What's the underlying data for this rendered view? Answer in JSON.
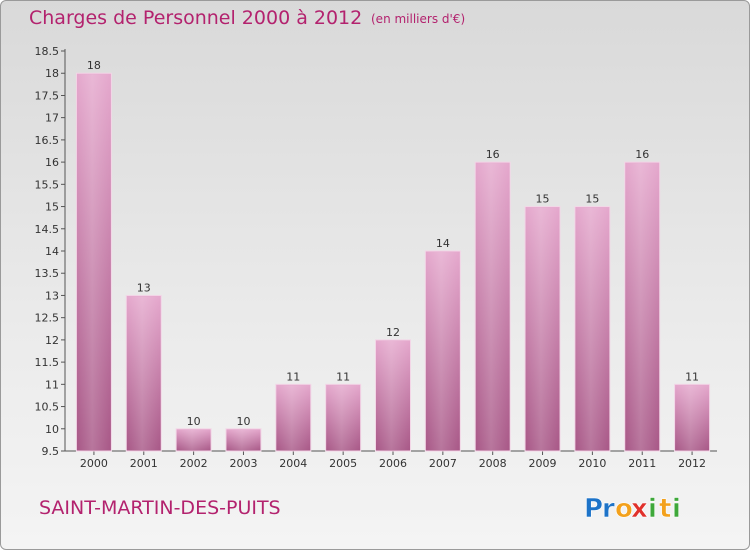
{
  "header": {
    "title": "Charges de Personnel 2000 à 2012",
    "unit": "(en milliers d'€)"
  },
  "footer": {
    "commune": "SAINT-MARTIN-DES-PUITS",
    "logo": {
      "text": "Proxiti",
      "letters": [
        "P",
        "r",
        "o",
        "x",
        "i",
        "t",
        "i"
      ],
      "letter_colors": [
        "#1d73c8",
        "#1d73c8",
        "#f3a11c",
        "#e0312b",
        "#3ea83a",
        "#f3a11c",
        "#3ea83a"
      ]
    }
  },
  "colors": {
    "title": "#b3226e",
    "bar_top": "#e5a8cd",
    "bar_bottom": "#a85887",
    "background_top": "#d9d9d9",
    "background_bottom": "#f4f4f4"
  },
  "chart_data": {
    "type": "bar",
    "title": "Charges de Personnel 2000 à 2012",
    "subtitle": "(en milliers d'€)",
    "categories": [
      "2000",
      "2001",
      "2002",
      "2003",
      "2004",
      "2005",
      "2006",
      "2007",
      "2008",
      "2009",
      "2010",
      "2011",
      "2012"
    ],
    "values": [
      18,
      13,
      10,
      10,
      11,
      11,
      12,
      14,
      16,
      15,
      15,
      16,
      11
    ],
    "ylim": [
      9.5,
      18.5
    ],
    "yticks": [
      "9.5",
      "10",
      "10.5",
      "11",
      "11.5",
      "12",
      "12.5",
      "13",
      "13.5",
      "14",
      "14.5",
      "15",
      "15.5",
      "16",
      "16.5",
      "17",
      "17.5",
      "18",
      "18.5"
    ],
    "grid": false
  }
}
